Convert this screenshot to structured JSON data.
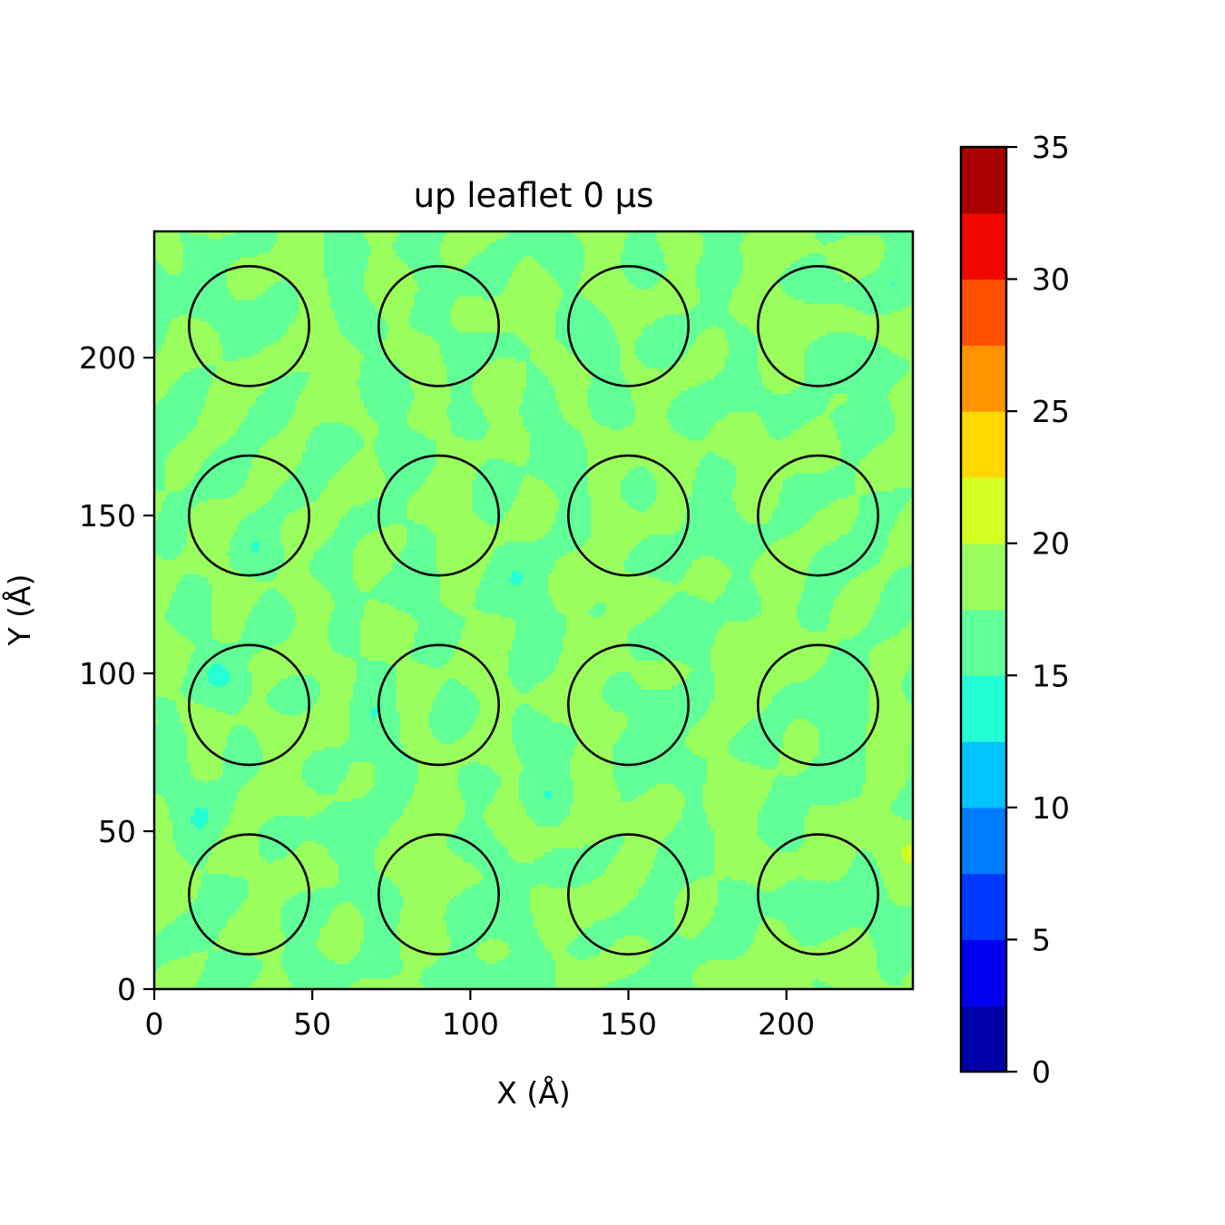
{
  "chart_data": {
    "type": "heatmap",
    "title": "up leaflet 0 μs",
    "xlabel": "X (Å)",
    "ylabel": "Y (Å)",
    "xlim": [
      0,
      240
    ],
    "ylim": [
      0,
      240
    ],
    "x_ticks": [
      0,
      50,
      100,
      150,
      200
    ],
    "y_ticks": [
      0,
      50,
      100,
      150,
      200
    ],
    "x_tick_labels": [
      "0",
      "50",
      "100",
      "150",
      "200"
    ],
    "y_tick_labels": [
      "0",
      "50",
      "100",
      "150",
      "200"
    ],
    "colorbar": {
      "min": 0,
      "max": 35,
      "ticks": [
        0,
        5,
        10,
        15,
        20,
        25,
        30,
        35
      ],
      "tick_labels": [
        "0",
        "5",
        "10",
        "15",
        "20",
        "25",
        "30",
        "35"
      ],
      "level_step": 2.5,
      "colormap": "jet",
      "level_colors": [
        "#0000a8",
        "#0000f1",
        "#0038ff",
        "#007cff",
        "#00c4ff",
        "#23ffd4",
        "#60ff97",
        "#9aff5d",
        "#d4ff23",
        "#ffd800",
        "#ff9400",
        "#ff5000",
        "#f10800",
        "#a80000"
      ]
    },
    "field_range": [
      12.5,
      22.5
    ],
    "field_dominant_levels": [
      "15–17.5",
      "17.5–20"
    ],
    "circle_radius": 19,
    "circles": [
      {
        "x": 30,
        "y": 210
      },
      {
        "x": 90,
        "y": 210
      },
      {
        "x": 150,
        "y": 210
      },
      {
        "x": 210,
        "y": 210
      },
      {
        "x": 30,
        "y": 150
      },
      {
        "x": 90,
        "y": 150
      },
      {
        "x": 150,
        "y": 150
      },
      {
        "x": 210,
        "y": 150
      },
      {
        "x": 30,
        "y": 90
      },
      {
        "x": 90,
        "y": 90
      },
      {
        "x": 150,
        "y": 90
      },
      {
        "x": 210,
        "y": 90
      },
      {
        "x": 30,
        "y": 30
      },
      {
        "x": 90,
        "y": 30
      },
      {
        "x": 150,
        "y": 30
      },
      {
        "x": 210,
        "y": 30
      }
    ]
  }
}
